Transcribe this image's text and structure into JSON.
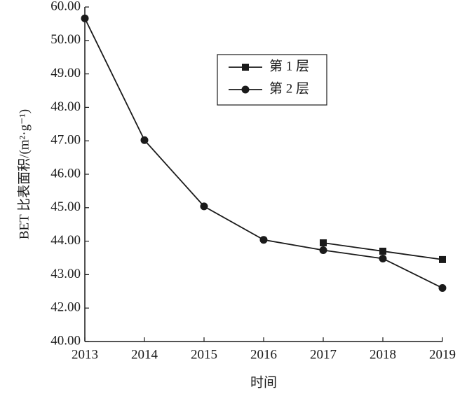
{
  "chart_data": {
    "type": "line",
    "y_label": "BET 比表面积/(m²·g⁻¹)",
    "x_label": "时间",
    "categories": [
      "2013",
      "2014",
      "2015",
      "2016",
      "2017",
      "2018",
      "2019"
    ],
    "series": [
      {
        "name": "第 1 层",
        "color": "#1a1a1a",
        "marker": "square",
        "values": [
          null,
          null,
          null,
          null,
          43.95,
          43.7,
          43.45
        ]
      },
      {
        "name": "第 2 层",
        "color": "#1a1a1a",
        "marker": "circle",
        "values": [
          56.6,
          47.02,
          45.04,
          44.04,
          43.73,
          43.48,
          42.6
        ]
      }
    ],
    "ylim": [
      40,
      60
    ],
    "yticks": [
      {
        "value": 40,
        "label": "40.00"
      },
      {
        "value": 42,
        "label": "42.00"
      },
      {
        "value": 43,
        "label": "43.00"
      },
      {
        "value": 44,
        "label": "44.00"
      },
      {
        "value": 45,
        "label": "45.00"
      },
      {
        "value": 46,
        "label": "46.00"
      },
      {
        "value": 47,
        "label": "47.00"
      },
      {
        "value": 48,
        "label": "48.00"
      },
      {
        "value": 49,
        "label": "49.00"
      },
      {
        "value": 50,
        "label": "50.00"
      },
      {
        "value": 60,
        "label": "60.00"
      }
    ],
    "legend": "upper-center"
  }
}
